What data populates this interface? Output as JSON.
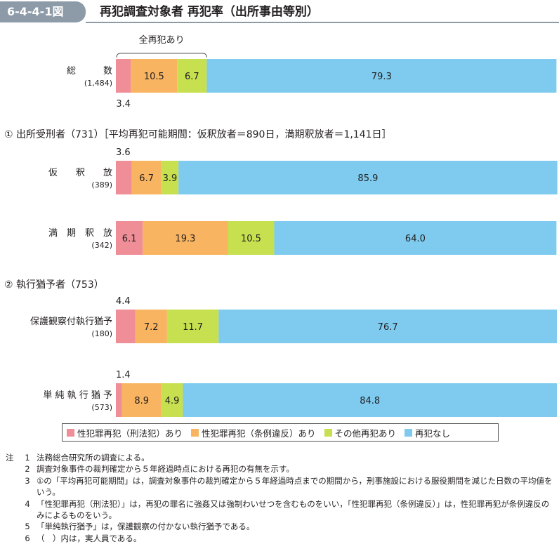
{
  "header": {
    "tag": "6-4-4-1図",
    "title": "再犯調査対象者 再犯率（出所事由等別）"
  },
  "colors": {
    "sex_penal": "#ef8e97",
    "sex_ordinance": "#f8b460",
    "other": "#c6e04f",
    "none": "#7ecbef"
  },
  "chart_data": {
    "type": "bar",
    "orientation": "horizontal",
    "stacked": true,
    "unit": "%",
    "xlim": [
      0,
      100
    ],
    "bracket_label": "全再犯あり",
    "sections": [
      "① 出所受刑者（731）［平均再犯可能期間：仮釈放者＝890日，満期釈放者＝1,141日］",
      "② 執行猶予者（753）"
    ],
    "categories": [
      {
        "label": "総　　　数",
        "count": "(1,484)"
      },
      {
        "label": "仮　　釈　　放",
        "count": "(389)"
      },
      {
        "label": "満　期　釈　放",
        "count": "(342)"
      },
      {
        "label": "保護観察付執行猶予",
        "count": "(180)"
      },
      {
        "label": "単 純 執 行 猶 予",
        "count": "(573)"
      }
    ],
    "series": [
      {
        "name": "性犯罪再犯（刑法犯）あり",
        "values": [
          3.4,
          3.6,
          6.1,
          4.4,
          1.4
        ]
      },
      {
        "name": "性犯罪再犯（条例違反）あり",
        "values": [
          10.5,
          6.7,
          19.3,
          7.2,
          8.9
        ]
      },
      {
        "name": "その他再犯あり",
        "values": [
          6.7,
          3.9,
          10.5,
          11.7,
          4.9
        ]
      },
      {
        "name": "再犯なし",
        "values": [
          79.3,
          85.9,
          64.0,
          76.7,
          84.8
        ]
      }
    ],
    "labels": [
      [
        "3.4",
        "10.5",
        "6.7",
        "79.3"
      ],
      [
        "3.6",
        "6.7",
        "3.9",
        "85.9"
      ],
      [
        "6.1",
        "19.3",
        "10.5",
        "64.0"
      ],
      [
        "4.4",
        "7.2",
        "11.7",
        "76.7"
      ],
      [
        "1.4",
        "8.9",
        "4.9",
        "84.8"
      ]
    ]
  },
  "notes": [
    {
      "prefix": "注",
      "num": "1",
      "text": "法務総合研究所の調査による。"
    },
    {
      "prefix": "",
      "num": "2",
      "text": "調査対象事件の裁判確定から５年経過時点における再犯の有無を示す。"
    },
    {
      "prefix": "",
      "num": "3",
      "text": "①の「平均再犯可能期間」は，調査対象事件の裁判確定から５年経過時点までの期間から，刑事施設における服役期間を減じた日数の平均値をいう。"
    },
    {
      "prefix": "",
      "num": "4",
      "text": "「性犯罪再犯（刑法犯）」は，再犯の罪名に強姦又は強制わいせつを含むものをいい，「性犯罪再犯（条例違反）」は，性犯罪再犯が条例違反のみによるものをいう。"
    },
    {
      "prefix": "",
      "num": "5",
      "text": "「単純執行猶予」は，保護観察の付かない執行猶予である。"
    },
    {
      "prefix": "",
      "num": "6",
      "text": "（　）内は，実人員である。"
    }
  ]
}
